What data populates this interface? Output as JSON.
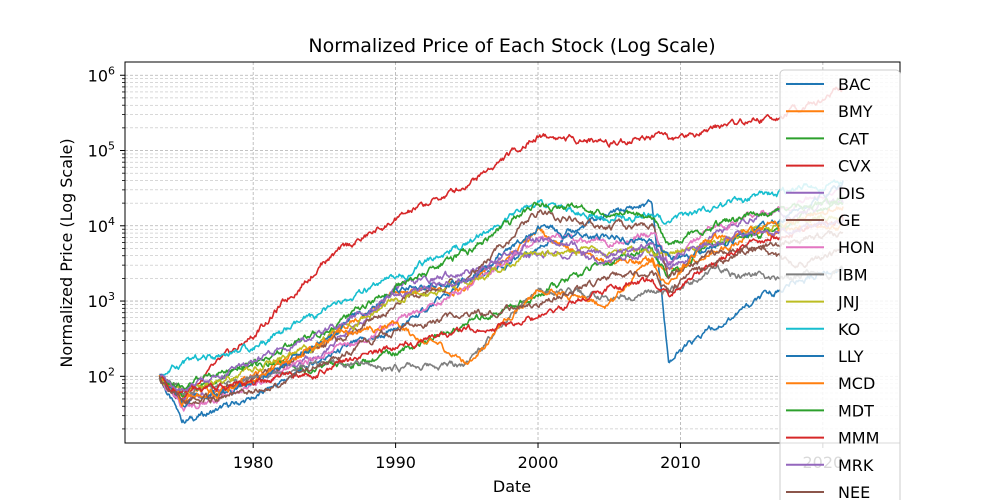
{
  "chart_data": {
    "type": "line",
    "title": "Normalized Price of Each Stock (Log Scale)",
    "xlabel": "Date",
    "ylabel": "Normalized Price (Log Scale)",
    "yscale": "log",
    "xlim": [
      "1971-01-01",
      "2025-06-01"
    ],
    "ylim": [
      13,
      1500000
    ],
    "x_ticks": [
      {
        "value": 1980,
        "label": "1980"
      },
      {
        "value": 1990,
        "label": "1990"
      },
      {
        "value": 2000,
        "label": "2000"
      },
      {
        "value": 2010,
        "label": "2010"
      },
      {
        "value": 2020,
        "label": "2020"
      }
    ],
    "y_ticks": [
      {
        "value": 100,
        "base": "10",
        "exp": "2"
      },
      {
        "value": 1000,
        "base": "10",
        "exp": "3"
      },
      {
        "value": 10000,
        "base": "10",
        "exp": "4"
      },
      {
        "value": 100000,
        "base": "10",
        "exp": "5"
      },
      {
        "value": 1000000,
        "base": "10",
        "exp": "6"
      }
    ],
    "grid": true,
    "legend_position": "upper right",
    "x": [
      "1973-06-01",
      "1975-01-01",
      "1980-01-01",
      "1985-01-01",
      "1990-01-01",
      "1995-01-01",
      "2000-01-01",
      "2005-01-01",
      "2008-01-01",
      "2009-03-01",
      "2012-01-01",
      "2015-01-01",
      "2018-01-01",
      "2021-06-01"
    ],
    "series": [
      {
        "name": "BAC",
        "color": "#1f77b4",
        "values": [
          100,
          25,
          50,
          180,
          400,
          1800,
          5000,
          14000,
          20000,
          160,
          400,
          900,
          1800,
          2800
        ]
      },
      {
        "name": "BMY",
        "color": "#ff7f0e",
        "values": [
          100,
          50,
          100,
          300,
          1200,
          1500,
          8000,
          3000,
          3500,
          2500,
          4500,
          8000,
          9000,
          10000
        ]
      },
      {
        "name": "CAT",
        "color": "#2ca02c",
        "values": [
          100,
          60,
          150,
          120,
          200,
          500,
          1200,
          3500,
          5000,
          2000,
          5500,
          7000,
          12000,
          25000
        ]
      },
      {
        "name": "CVX",
        "color": "#d62728",
        "values": [
          100,
          55,
          350,
          3500,
          12000,
          35000,
          160000,
          130000,
          160000,
          130000,
          200000,
          250000,
          320000,
          700000
        ]
      },
      {
        "name": "DIS",
        "color": "#9467bd",
        "values": [
          100,
          45,
          90,
          200,
          1500,
          2500,
          4500,
          3500,
          4500,
          2500,
          6000,
          14000,
          15000,
          20000
        ]
      },
      {
        "name": "GE",
        "color": "#8c564b",
        "values": [
          100,
          40,
          90,
          250,
          900,
          2000,
          15000,
          9000,
          10000,
          2000,
          4000,
          5000,
          3000,
          4500
        ]
      },
      {
        "name": "HON",
        "color": "#e377c2",
        "values": [
          100,
          35,
          75,
          200,
          500,
          1500,
          7000,
          6000,
          8000,
          3500,
          9000,
          14000,
          20000,
          28000
        ]
      },
      {
        "name": "IBM",
        "color": "#7f7f7f",
        "values": [
          100,
          60,
          90,
          150,
          130,
          150,
          1300,
          1100,
          1400,
          1200,
          2500,
          2200,
          2000,
          2500
        ]
      },
      {
        "name": "JNJ",
        "color": "#bcbd22",
        "values": [
          100,
          60,
          120,
          300,
          1000,
          1800,
          4500,
          4500,
          5000,
          4000,
          5500,
          8500,
          11000,
          14000
        ]
      },
      {
        "name": "KO",
        "color": "#17becf",
        "values": [
          100,
          150,
          250,
          700,
          2000,
          6000,
          20000,
          12000,
          15000,
          11000,
          17000,
          22000,
          30000,
          40000
        ]
      },
      {
        "name": "LLY",
        "color": "#1f77b4",
        "values": [
          100,
          45,
          80,
          300,
          1500,
          1800,
          9000,
          6500,
          6000,
          3500,
          4500,
          8000,
          15000,
          40000
        ]
      },
      {
        "name": "MCD",
        "color": "#ff7f0e",
        "values": [
          100,
          45,
          80,
          300,
          500,
          150,
          1500,
          900,
          3500,
          1500,
          7000,
          8000,
          12000,
          18000
        ]
      },
      {
        "name": "MDT",
        "color": "#2ca02c",
        "values": [
          100,
          80,
          150,
          400,
          1500,
          4500,
          20000,
          14000,
          13000,
          6000,
          9000,
          14000,
          18000,
          20000
        ]
      },
      {
        "name": "MMM",
        "color": "#d62728",
        "values": [
          100,
          60,
          80,
          120,
          250,
          400,
          600,
          1500,
          1800,
          1200,
          3000,
          6000,
          8000,
          12000
        ]
      },
      {
        "name": "MRK",
        "color": "#9467bd",
        "values": [
          100,
          70,
          150,
          400,
          1200,
          2000,
          7000,
          4000,
          6000,
          3500,
          6000,
          8000,
          9000,
          12000
        ]
      },
      {
        "name": "NEE",
        "color": "#8c564b",
        "values": [
          100,
          45,
          60,
          150,
          400,
          700,
          900,
          2000,
          2500,
          1500,
          3000,
          5000,
          6500,
          8000
        ]
      }
    ]
  }
}
